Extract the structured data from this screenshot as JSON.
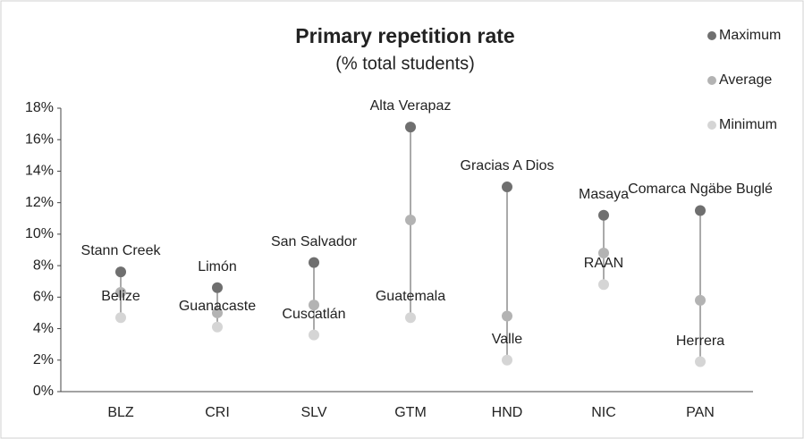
{
  "chart_data": {
    "type": "dot_range",
    "title": "Primary repetition rate",
    "subtitle": "(% total students)",
    "categories": [
      "BLZ",
      "CRI",
      "SLV",
      "GTM",
      "HND",
      "NIC",
      "PAN"
    ],
    "series": [
      {
        "name": "Maximum",
        "color": "#6f6f6f",
        "values": [
          7.6,
          6.6,
          8.2,
          16.8,
          13.0,
          11.2,
          11.5
        ]
      },
      {
        "name": "Average",
        "color": "#b3b3b3",
        "values": [
          6.3,
          5.0,
          5.5,
          10.9,
          4.8,
          8.8,
          5.8
        ]
      },
      {
        "name": "Minimum",
        "color": "#d5d5d5",
        "values": [
          4.7,
          4.1,
          3.6,
          4.7,
          2.0,
          6.8,
          1.9
        ]
      }
    ],
    "max_labels": [
      "Stann Creek",
      "Limón",
      "San Salvador",
      "Alta Verapaz",
      "Gracias A Dios",
      "Masaya",
      "Comarca Ngäbe Buglé"
    ],
    "min_labels": [
      "Belize",
      "Guanacaste",
      "Cuscatlán",
      "Guatemala",
      "Valle",
      "RAAN",
      "Herrera"
    ],
    "ylim": [
      0,
      18
    ],
    "yticks": [
      {
        "value": 0,
        "label": "0%"
      },
      {
        "value": 2,
        "label": "2%"
      },
      {
        "value": 4,
        "label": "4%"
      },
      {
        "value": 6,
        "label": "6%"
      },
      {
        "value": 8,
        "label": "8%"
      },
      {
        "value": 10,
        "label": "10%"
      },
      {
        "value": 12,
        "label": "12%"
      },
      {
        "value": 14,
        "label": "14%"
      },
      {
        "value": 16,
        "label": "16%"
      },
      {
        "value": 18,
        "label": "18%"
      }
    ],
    "grid": false,
    "legend": "right"
  }
}
